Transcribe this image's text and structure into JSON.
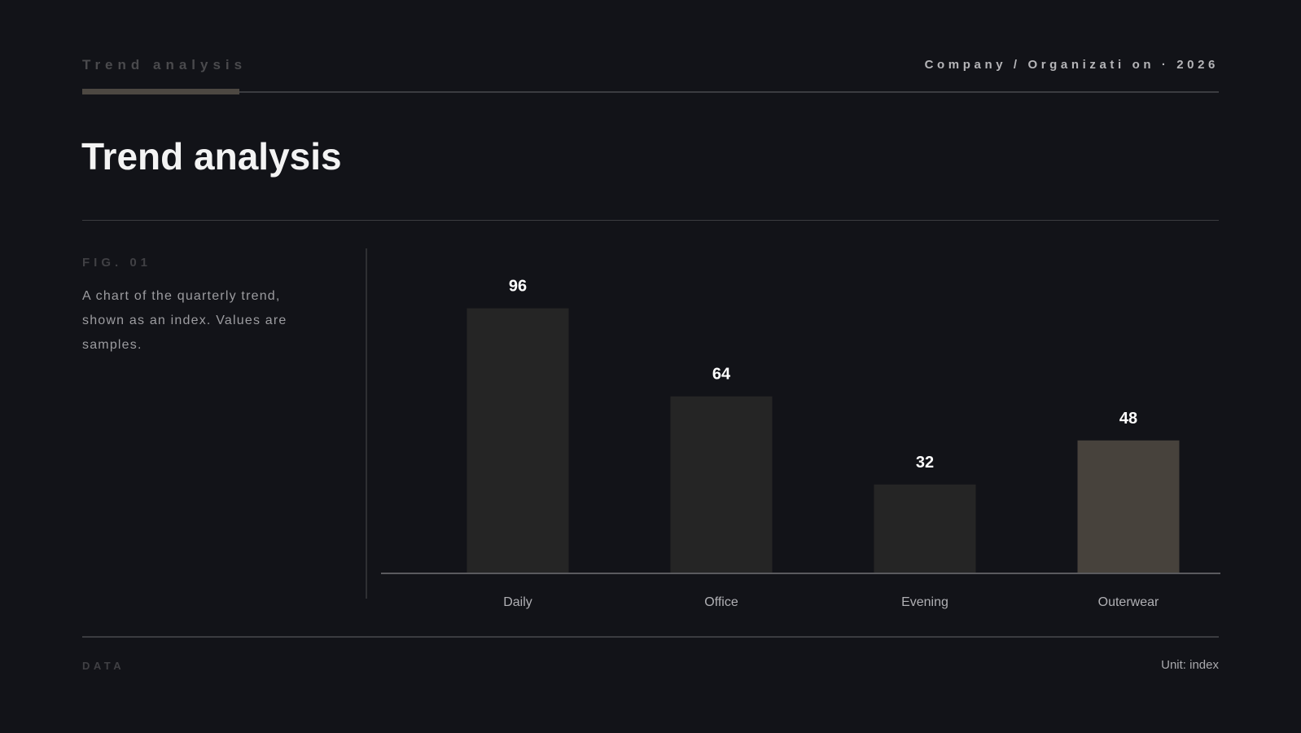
{
  "header": {
    "eyebrow": "Trend analysis",
    "org": "Company / Organizati on · 2026"
  },
  "page_title": "Trend analysis",
  "figure": {
    "label": "FIG. 01",
    "caption": "A chart of the quarterly trend, shown as an index. Values are samples."
  },
  "footer": {
    "left": "DATA",
    "right": "Unit: index"
  },
  "colors": {
    "background": "#121318",
    "bar": "#252525",
    "bar_highlight": "#47423c",
    "axis": "#5a5a5e"
  },
  "chart_data": {
    "type": "bar",
    "categories": [
      "Daily",
      "Office",
      "Evening",
      "Outerwear"
    ],
    "values": [
      96,
      64,
      32,
      48
    ],
    "highlight": "Outerwear",
    "ylim": [
      0,
      110
    ],
    "grid": false
  }
}
